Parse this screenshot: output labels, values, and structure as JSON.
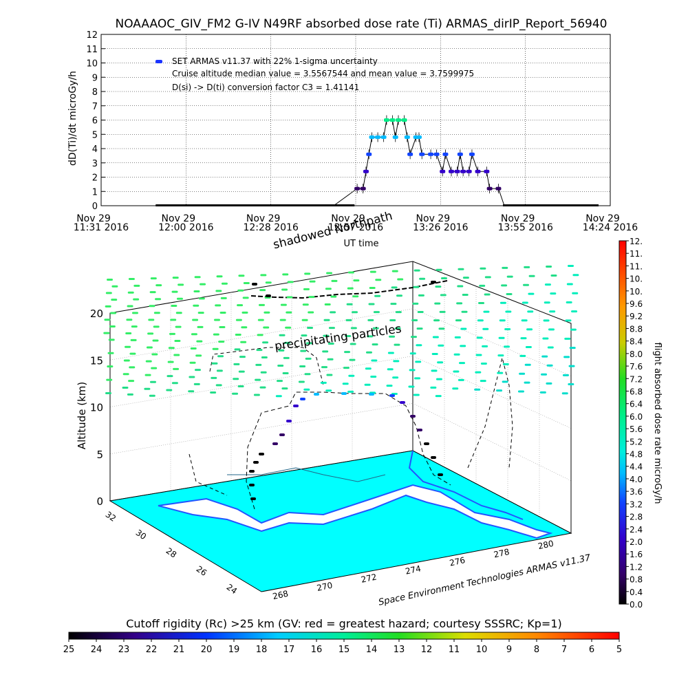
{
  "page_title": "NOAAAOC_GIV_FM2 G-IV    N49RF  absorbed dose rate (Ti) ARMAS_dirIP_Report_56940",
  "chart_data": [
    {
      "type": "scatter",
      "ylabel": "dD(Ti)/dt microGy/h",
      "xlabel": "UT time",
      "ylim": [
        0,
        12
      ],
      "yticks": [
        "0",
        "1",
        "2",
        "3",
        "4",
        "5",
        "6",
        "7",
        "8",
        "9",
        "10",
        "11",
        "12"
      ],
      "xticks": [
        {
          "line1": "Nov 29",
          "line2": "11:31 2016"
        },
        {
          "line1": "Nov 29",
          "line2": "12:00 2016"
        },
        {
          "line1": "Nov 29",
          "line2": "12:28 2016"
        },
        {
          "line1": "Nov 29",
          "line2": "12:57 2016"
        },
        {
          "line1": "Nov 29",
          "line2": "13:26 2016"
        },
        {
          "line1": "Nov 29",
          "line2": "13:55 2016"
        },
        {
          "line1": "Nov 29",
          "line2": "14:24 2016"
        }
      ],
      "legend": [
        "SET ARMAS v11.37 with 22% 1-sigma uncertainty",
        "Cruise altitude median value = 3.5567544 and mean value = 3.7599975",
        "D(si) -> D(ti) conversion factor C3 = 1.41141"
      ],
      "grid": true,
      "series": [
        {
          "name": "SET ARMAS v11.37 with 22% 1-sigma uncertainty",
          "x_minutes_note": "",
          "points": [
            [
              "11:50",
              0
            ],
            [
              "12:10",
              0
            ],
            [
              "12:30",
              0
            ],
            [
              "12:50",
              0
            ],
            [
              "12:58",
              1.2
            ],
            [
              "13:00",
              1.2
            ],
            [
              "13:01",
              2.4
            ],
            [
              "13:02",
              3.6
            ],
            [
              "13:03",
              4.8
            ],
            [
              "13:05",
              4.8
            ],
            [
              "13:07",
              4.8
            ],
            [
              "13:08",
              6.0
            ],
            [
              "13:10",
              6.0
            ],
            [
              "13:11",
              4.8
            ],
            [
              "13:12",
              6.0
            ],
            [
              "13:14",
              6.0
            ],
            [
              "13:15",
              4.8
            ],
            [
              "13:16",
              3.6
            ],
            [
              "13:18",
              4.8
            ],
            [
              "13:19",
              4.8
            ],
            [
              "13:20",
              3.6
            ],
            [
              "13:23",
              3.6
            ],
            [
              "13:25",
              3.6
            ],
            [
              "13:27",
              2.4
            ],
            [
              "13:28",
              3.6
            ],
            [
              "13:30",
              2.4
            ],
            [
              "13:32",
              2.4
            ],
            [
              "13:33",
              3.6
            ],
            [
              "13:34",
              2.4
            ],
            [
              "13:36",
              2.4
            ],
            [
              "13:37",
              3.6
            ],
            [
              "13:39",
              2.4
            ],
            [
              "13:42",
              2.4
            ],
            [
              "13:43",
              1.2
            ],
            [
              "13:46",
              1.2
            ],
            [
              "13:48",
              0
            ],
            [
              "14:00",
              0
            ],
            [
              "14:10",
              0
            ],
            [
              "14:20",
              0
            ]
          ]
        }
      ]
    },
    {
      "type": "scatter",
      "zlabel": "Altitude (km)",
      "zticks": [
        "0",
        "5",
        "10",
        "15",
        "20"
      ],
      "lat_ticks": [
        "24",
        "26",
        "28",
        "30",
        "32"
      ],
      "lon_ticks": [
        "268",
        "270",
        "272",
        "274",
        "276",
        "278",
        "280"
      ],
      "annotations": [
        "shadowed Northpath",
        "precipitating particles",
        "Space Environment Technologies ARMAS v11.37"
      ],
      "colorbar": {
        "label": "flight absorbed dose rate microGy/h",
        "ticks": [
          "0.0",
          "0.4",
          "0.8",
          "1.2",
          "1.6",
          "2.0",
          "2.4",
          "2.8",
          "3.2",
          "3.6",
          "4.0",
          "4.4",
          "4.8",
          "5.2",
          "5.6",
          "6.0",
          "6.4",
          "6.8",
          "7.2",
          "7.6",
          "8.0",
          "8.4",
          "8.8",
          "9.2",
          "9.6",
          "10.",
          "10.",
          "11.",
          "11.",
          "12."
        ]
      },
      "cutoff_bar": {
        "title": "Cutoff rigidity (Rc) >25 km (GV: red = greatest hazard; courtesy SSSRC; Kp=1)",
        "ticks": [
          "25",
          "24",
          "23",
          "22",
          "21",
          "20",
          "19",
          "18",
          "17",
          "16",
          "15",
          "14",
          "13",
          "12",
          "11",
          "10",
          "9",
          "8",
          "7",
          "6",
          "5"
        ]
      },
      "colors": {
        "land": "#00ffff",
        "coast": "#2255ff",
        "grid_dose": "#33ee66"
      }
    }
  ]
}
